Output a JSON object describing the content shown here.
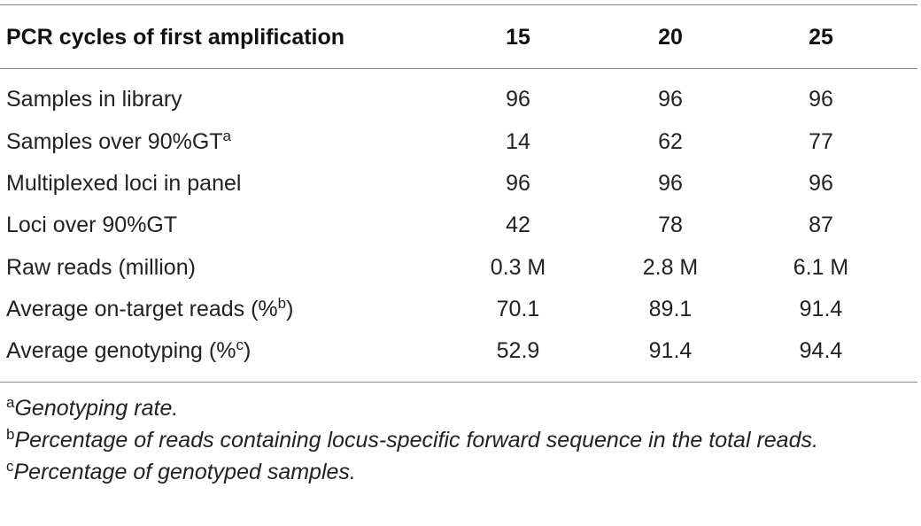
{
  "table": {
    "header": {
      "label": "PCR cycles of first amplification",
      "columns": [
        "15",
        "20",
        "25"
      ]
    },
    "rows": [
      {
        "label": "Samples in library",
        "sup": "",
        "suffix": "",
        "values": [
          "96",
          "96",
          "96"
        ]
      },
      {
        "label": "Samples over 90%GT",
        "sup": "a",
        "suffix": "",
        "values": [
          "14",
          "62",
          "77"
        ]
      },
      {
        "label": "Multiplexed loci in panel",
        "sup": "",
        "suffix": "",
        "values": [
          "96",
          "96",
          "96"
        ]
      },
      {
        "label": "Loci over 90%GT",
        "sup": "",
        "suffix": "",
        "values": [
          "42",
          "78",
          "87"
        ]
      },
      {
        "label": "Raw reads (million)",
        "sup": "",
        "suffix": "",
        "values": [
          "0.3 M",
          "2.8 M",
          "6.1 M"
        ]
      },
      {
        "label": "Average on-target reads (%",
        "sup": "b",
        "suffix": ")",
        "values": [
          "70.1",
          "89.1",
          "91.4"
        ]
      },
      {
        "label": "Average genotyping (%",
        "sup": "c",
        "suffix": ")",
        "values": [
          "52.9",
          "91.4",
          "94.4"
        ]
      }
    ]
  },
  "footnotes": [
    {
      "mark": "a",
      "text": "Genotyping rate."
    },
    {
      "mark": "b",
      "text": "Percentage of reads containing locus-specific forward sequence in the total reads."
    },
    {
      "mark": "c",
      "text": "Percentage of genotyped samples."
    }
  ]
}
